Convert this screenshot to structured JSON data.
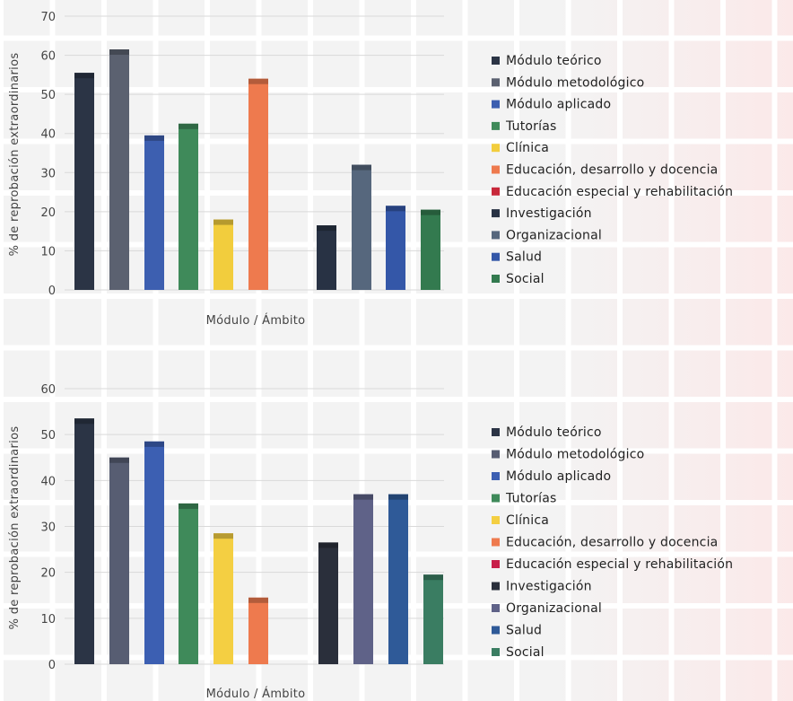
{
  "chart_data": [
    {
      "type": "bar",
      "xlabel": "Módulo / Ámbito",
      "ylabel": "% de reprobación extraordinarios",
      "ylim": [
        0,
        70
      ],
      "yticks": [
        0,
        10,
        20,
        30,
        40,
        50,
        60,
        70
      ],
      "grid": true,
      "legend_position": "right",
      "series": [
        {
          "name": "Módulo teórico",
          "value": 55.5,
          "color": "#2b3445"
        },
        {
          "name": "Módulo metodológico",
          "value": 61.5,
          "color": "#5b6170"
        },
        {
          "name": "Módulo aplicado",
          "value": 39.5,
          "color": "#3d5fb0"
        },
        {
          "name": "Tutorías",
          "value": 42.5,
          "color": "#3f8a5a"
        },
        {
          "name": "Clínica",
          "value": 18,
          "color": "#f2cd3d"
        },
        {
          "name": "Educación, desarrollo y docencia",
          "value": 54,
          "color": "#ee7a4e"
        },
        {
          "name": "Educación especial y rehabilitación",
          "value": 0,
          "color": "#c8283a"
        },
        {
          "name": "Investigación",
          "value": 16.5,
          "color": "#283244"
        },
        {
          "name": "Organizacional",
          "value": 32,
          "color": "#56677d"
        },
        {
          "name": "Salud",
          "value": 21.5,
          "color": "#3457a8"
        },
        {
          "name": "Social",
          "value": 20.5,
          "color": "#337a4f"
        }
      ]
    },
    {
      "type": "bar",
      "xlabel": "Módulo / Ámbito",
      "ylabel": "% de reprobación extraordinarios",
      "ylim": [
        0,
        60
      ],
      "yticks": [
        0,
        10,
        20,
        30,
        40,
        50,
        60
      ],
      "grid": true,
      "legend_position": "right",
      "series": [
        {
          "name": "Módulo teórico",
          "value": 53.5,
          "color": "#2b3445"
        },
        {
          "name": "Módulo metodológico",
          "value": 45,
          "color": "#575d72"
        },
        {
          "name": "Módulo aplicado",
          "value": 48.5,
          "color": "#3c5fb2"
        },
        {
          "name": "Tutorías",
          "value": 35,
          "color": "#3f8a5a"
        },
        {
          "name": "Clínica",
          "value": 28.5,
          "color": "#f4cf42"
        },
        {
          "name": "Educación, desarrollo y docencia",
          "value": 14.5,
          "color": "#ee7a4e"
        },
        {
          "name": "Educación especial y rehabilitación",
          "value": 0,
          "color": "#c81f4a"
        },
        {
          "name": "Investigación",
          "value": 26.5,
          "color": "#2a2f3b"
        },
        {
          "name": "Organizacional",
          "value": 37,
          "color": "#5f6288"
        },
        {
          "name": "Salud",
          "value": 37,
          "color": "#2f5a98"
        },
        {
          "name": "Social",
          "value": 19.5,
          "color": "#3a7d62"
        }
      ]
    }
  ]
}
